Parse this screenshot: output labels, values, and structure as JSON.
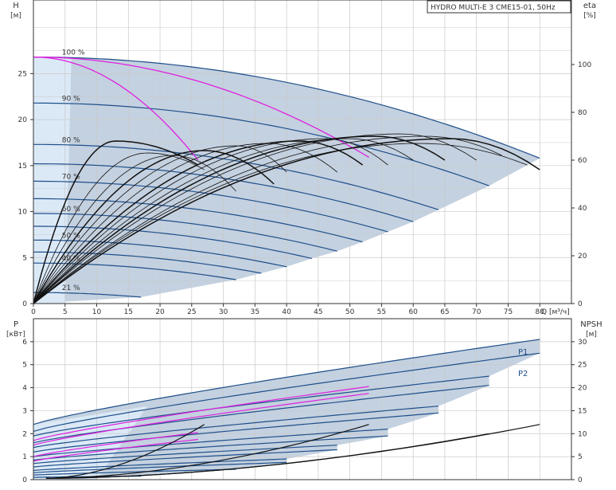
{
  "chart_data": [
    {
      "type": "line",
      "title": "HYDRO MULTI-E 3 CME15-01, 50Hz",
      "xlabel": "Q [м³/ч]",
      "ylabel": "H",
      "ylabel_unit": "[м]",
      "y2label": "eta",
      "y2label_unit": "[%]",
      "xlim": [
        0,
        85
      ],
      "ylim": [
        0,
        33
      ],
      "y2lim": [
        0,
        127
      ],
      "xticks": [
        0,
        5,
        10,
        15,
        20,
        25,
        30,
        35,
        40,
        45,
        50,
        55,
        60,
        65,
        70,
        75,
        80
      ],
      "yticks": [
        0,
        5,
        10,
        15,
        20,
        25
      ],
      "y2ticks": [
        0,
        20,
        40,
        60,
        80,
        100
      ],
      "grid": true,
      "speed_curves": [
        {
          "name": "100 %",
          "h0": 26.8,
          "qmax": 80,
          "hend": 15.8
        },
        {
          "name": "90 %",
          "h0": 21.8,
          "qmax": 72,
          "hend": 12.8
        },
        {
          "name": "80 %",
          "h0": 17.3,
          "qmax": 64,
          "hend": 10.2
        },
        {
          "name": "",
          "h0": 15.2,
          "qmax": 60,
          "hend": 8.9
        },
        {
          "name": "70 %",
          "h0": 13.3,
          "qmax": 56,
          "hend": 7.8
        },
        {
          "name": "",
          "h0": 11.4,
          "qmax": 52,
          "hend": 6.7
        },
        {
          "name": "60 %",
          "h0": 9.8,
          "qmax": 48,
          "hend": 5.7
        },
        {
          "name": "",
          "h0": 8.4,
          "qmax": 44,
          "hend": 4.9
        },
        {
          "name": "50 %",
          "h0": 6.9,
          "qmax": 40,
          "hend": 4.0
        },
        {
          "name": "",
          "h0": 5.6,
          "qmax": 36,
          "hend": 3.3
        },
        {
          "name": "40 %",
          "h0": 4.4,
          "qmax": 32,
          "hend": 2.6
        },
        {
          "name": "21 %",
          "h0": 1.2,
          "qmax": 17,
          "hend": 0.7
        }
      ],
      "pump_limit_curves": [
        {
          "h0": 26.8,
          "qmax": 26,
          "hend": 15.6
        },
        {
          "h0": 26.8,
          "qmax": 53,
          "hend": 15.9
        }
      ],
      "efficiency_curves": [
        {
          "q0": 0,
          "qpeak": 13,
          "peak": 68,
          "qend": 26,
          "etaend": 58
        },
        {
          "q0": 0,
          "qpeak": 18,
          "peak": 63,
          "qend": 27,
          "etaend": 56
        },
        {
          "q0": 0,
          "qpeak": 22,
          "peak": 62,
          "qend": 32,
          "etaend": 47
        },
        {
          "q0": 0,
          "qpeak": 27,
          "peak": 64,
          "qend": 38,
          "etaend": 50
        },
        {
          "q0": 0,
          "qpeak": 32,
          "peak": 66,
          "qend": 40,
          "etaend": 55
        },
        {
          "q0": 0,
          "qpeak": 37,
          "peak": 67,
          "qend": 48,
          "etaend": 55
        },
        {
          "q0": 0,
          "qpeak": 42,
          "peak": 68,
          "qend": 52,
          "etaend": 58
        },
        {
          "q0": 0,
          "qpeak": 46,
          "peak": 69,
          "qend": 56,
          "etaend": 58
        },
        {
          "q0": 0,
          "qpeak": 50,
          "peak": 69,
          "qend": 60,
          "etaend": 60
        },
        {
          "q0": 0,
          "qpeak": 54,
          "peak": 70,
          "qend": 65,
          "etaend": 60
        },
        {
          "q0": 0,
          "qpeak": 58,
          "peak": 71,
          "qend": 70,
          "etaend": 60
        },
        {
          "q0": 0,
          "qpeak": 62,
          "peak": 70,
          "qend": 74,
          "etaend": 62
        },
        {
          "q0": 0,
          "qpeak": 66,
          "peak": 69,
          "qend": 80,
          "etaend": 56
        },
        {
          "q0": 0,
          "qpeak": 61,
          "peak": 67,
          "qend": 78,
          "etaend": 58
        }
      ]
    },
    {
      "type": "line",
      "xlabel": "",
      "ylabel": "P",
      "ylabel_unit": "[кВт]",
      "y2label": "NPSH",
      "y2label_unit": "[м]",
      "xlim": [
        0,
        85
      ],
      "ylim": [
        0,
        7
      ],
      "y2lim": [
        0,
        35
      ],
      "yticks": [
        0,
        1,
        2,
        3,
        4,
        5,
        6
      ],
      "y2ticks": [
        0,
        5,
        10,
        15,
        20,
        25,
        30
      ],
      "grid": true,
      "series_labels": [
        "P1",
        "P2"
      ],
      "power_curves": [
        {
          "name": "P1",
          "p0": 2.4,
          "qmax": 80,
          "pend": 6.1
        },
        {
          "name": "P2",
          "p0": 2.1,
          "qmax": 80,
          "pend": 5.5
        },
        {
          "name": "",
          "p0": 1.9,
          "qmax": 72,
          "pend": 4.5
        },
        {
          "name": "",
          "p0": 1.6,
          "qmax": 72,
          "pend": 4.1
        },
        {
          "name": "",
          "p0": 1.4,
          "qmax": 64,
          "pend": 3.2
        },
        {
          "name": "",
          "p0": 1.2,
          "qmax": 64,
          "pend": 2.9
        },
        {
          "name": "",
          "p0": 1.0,
          "qmax": 56,
          "pend": 2.2
        },
        {
          "name": "",
          "p0": 0.85,
          "qmax": 56,
          "pend": 1.9
        },
        {
          "name": "",
          "p0": 0.7,
          "qmax": 48,
          "pend": 1.5
        },
        {
          "name": "",
          "p0": 0.55,
          "qmax": 48,
          "pend": 1.3
        },
        {
          "name": "",
          "p0": 0.4,
          "qmax": 40,
          "pend": 0.9
        },
        {
          "name": "",
          "p0": 0.3,
          "qmax": 40,
          "pend": 0.75
        },
        {
          "name": "",
          "p0": 0.2,
          "qmax": 32,
          "pend": 0.45
        },
        {
          "name": "",
          "p0": 0.1,
          "qmax": 17,
          "pend": 0.15
        }
      ],
      "pump_limit_power": [
        {
          "p0": 1.7,
          "qmax": 53,
          "pend": 4.05
        },
        {
          "p0": 1.5,
          "qmax": 53,
          "pend": 3.75
        },
        {
          "p0": 1.0,
          "qmax": 26,
          "pend": 2.05
        },
        {
          "p0": 0.8,
          "qmax": 26,
          "pend": 1.75
        }
      ],
      "npsh_curves": [
        {
          "q0": 2,
          "qend": 27,
          "nend": 12
        },
        {
          "q0": 2,
          "qend": 53,
          "nend": 12
        },
        {
          "q0": 2,
          "qend": 72,
          "nend": 10
        },
        {
          "q0": 2,
          "qend": 80,
          "nend": 12
        }
      ]
    }
  ],
  "colors": {
    "grid": "#c9c9c9",
    "area": "#c4d1e0",
    "area_light": "#dbe9f7",
    "curve": "#1f4f8a",
    "limit": "#e020e0",
    "eta": "#111111",
    "axis": "#333333",
    "text": "#333333",
    "label_blue": "#1f4f8a"
  }
}
